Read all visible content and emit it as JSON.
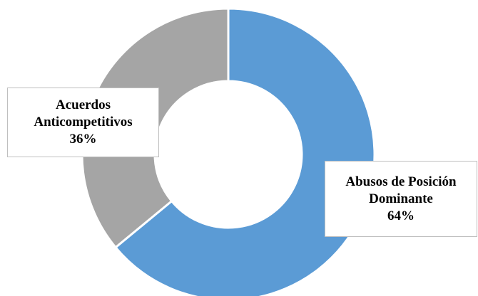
{
  "chart_data": {
    "type": "pie",
    "variant": "donut",
    "title": "",
    "slices": [
      {
        "label_lines": [
          "Abusos de Posición",
          "Dominante"
        ],
        "value": 64,
        "percent_label": "64%",
        "color": "#5B9BD5"
      },
      {
        "label_lines": [
          "Acuerdos",
          "Anticompetitivos"
        ],
        "value": 36,
        "percent_label": "36%",
        "color": "#A5A5A5"
      }
    ],
    "start_angle_deg": 0,
    "direction": "clockwise",
    "legend": "none",
    "slice_border_color": "#ffffff"
  }
}
